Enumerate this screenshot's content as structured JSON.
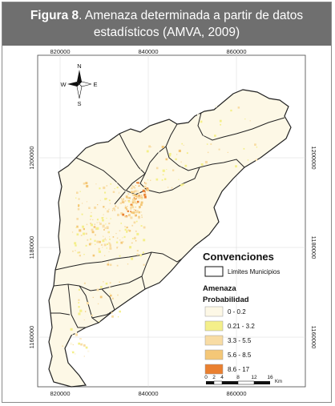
{
  "figure": {
    "label": "Figura 8",
    "title_line1": ". Amenaza determinada a partir de datos",
    "title_line2": "estadísticos (AMVA, 2009)"
  },
  "map": {
    "x_ticks": [
      "820000",
      "840000",
      "860000"
    ],
    "y_ticks": [
      "1200000",
      "1180000",
      "1160000"
    ]
  },
  "compass": {
    "n": "N",
    "s": "S",
    "e": "E",
    "w": "W"
  },
  "legend": {
    "title": "Convenciones",
    "boundary_label": "Limites Municipios",
    "threat_heading": "Amenaza",
    "prob_heading": "Probabilidad",
    "classes": [
      {
        "label": "0 - 0.2",
        "color": "#fdf8e6"
      },
      {
        "label": "0.21 - 3.2",
        "color": "#f4ef8a"
      },
      {
        "label": "3.3 - 5.5",
        "color": "#f8dca4"
      },
      {
        "label": "5.6 - 8.5",
        "color": "#f4c777"
      },
      {
        "label": "8.6 - 17",
        "color": "#ea8030"
      }
    ]
  },
  "scale_bar": {
    "labels": [
      "0",
      "2",
      "4",
      "8",
      "12",
      "16"
    ],
    "unit": "Km"
  }
}
